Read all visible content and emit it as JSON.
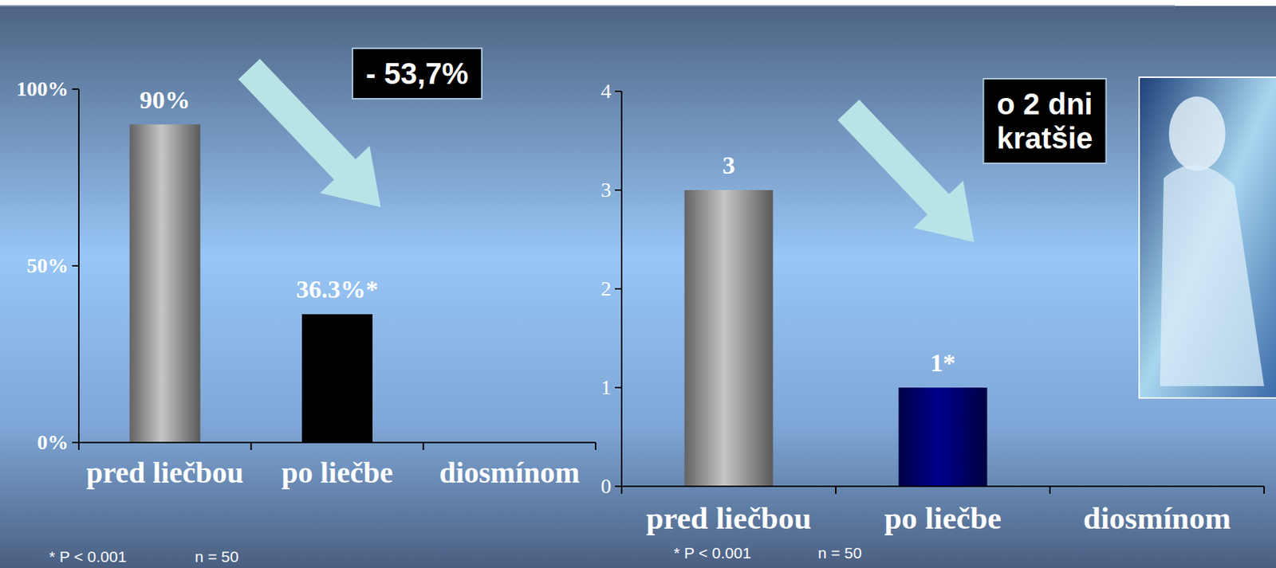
{
  "chart_data": [
    {
      "type": "bar",
      "categories": [
        "pred liečbou",
        "po liečbe",
        "diosmínom"
      ],
      "values": [
        90,
        36.3,
        null
      ],
      "value_labels": [
        "90%",
        "36.3%*",
        null
      ],
      "colors": [
        "#b4b4b4",
        "#000000",
        null
      ],
      "ylim": [
        0,
        100
      ],
      "yticks": [
        {
          "value": 0,
          "label": "0%"
        },
        {
          "value": 50,
          "label": "50%"
        },
        {
          "value": 100,
          "label": "100%"
        }
      ],
      "data_labels": true,
      "grid": false,
      "annotation": "- 53,7%",
      "footnotes": [
        "* P < 0.001",
        "n = 50"
      ]
    },
    {
      "type": "bar",
      "categories": [
        "pred liečbou",
        "po liečbe",
        "diosmínom"
      ],
      "values": [
        3,
        1,
        null
      ],
      "value_labels": [
        "3",
        "1*",
        null
      ],
      "colors": [
        "#b4b4b4",
        "#000080",
        null
      ],
      "ylim": [
        0,
        4
      ],
      "yticks": [
        0,
        1,
        2,
        3,
        4
      ],
      "data_labels": true,
      "grid": false,
      "annotation": "o 2 dni kratšie",
      "footnotes": [
        "* P < 0.001",
        "n = 50"
      ]
    }
  ]
}
